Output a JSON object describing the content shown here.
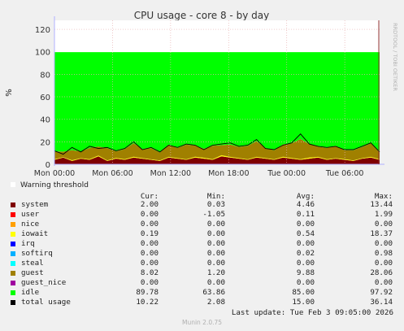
{
  "chart_data": {
    "type": "area",
    "title": "CPU usage - core 8 - by day",
    "ylabel": "%",
    "watermark": "RRDTOOL / TOBI OETIKER",
    "ylim": [
      0,
      128
    ],
    "yticks": [
      0,
      20,
      40,
      60,
      80,
      100,
      120
    ],
    "x_tick_labels": [
      "Mon 00:00",
      "Mon 06:00",
      "Mon 12:00",
      "Mon 18:00",
      "Tue 00:00",
      "Tue 06:00"
    ],
    "grid": true,
    "stack_order": [
      "system",
      "user",
      "nice",
      "iowait",
      "irq",
      "softirq",
      "steal",
      "guest",
      "guest_nice",
      "idle"
    ],
    "series_note": "idle stacked on top reaching 100%",
    "warning_threshold_label": "Warning threshold",
    "series": [
      {
        "name": "system",
        "color": "#7f0000",
        "values": [
          4,
          6,
          3,
          5,
          4,
          7,
          3,
          5,
          4,
          6,
          5,
          4,
          3,
          6,
          5,
          4,
          6,
          5,
          4,
          7,
          6,
          5,
          4,
          6,
          5,
          4,
          6,
          5,
          4,
          5,
          6,
          4,
          5,
          4,
          3,
          5,
          6,
          4
        ]
      },
      {
        "name": "user",
        "color": "#ff0000",
        "values": [
          0,
          0,
          0,
          0,
          0,
          0,
          0,
          0,
          0,
          0,
          0,
          0,
          0,
          0,
          0,
          0,
          0,
          0,
          0,
          0,
          0,
          0,
          0,
          0,
          0,
          0,
          0,
          0,
          0,
          0,
          0,
          0,
          0,
          0,
          0,
          0,
          0,
          0
        ]
      },
      {
        "name": "nice",
        "color": "#ff9f00",
        "values": [
          0,
          0,
          0,
          0,
          0,
          0,
          0,
          0,
          0,
          0,
          0,
          0,
          0,
          0,
          0,
          0,
          0,
          0,
          0,
          0,
          0,
          0,
          0,
          0,
          0,
          0,
          0,
          0,
          0,
          0,
          0,
          0,
          0,
          0,
          0,
          0,
          0,
          0
        ]
      },
      {
        "name": "iowait",
        "color": "#ffff00",
        "values": [
          0.5,
          0.3,
          0.6,
          0.4,
          0.5,
          0.8,
          0.4,
          0.6,
          0.5,
          0.7,
          0.5,
          0.4,
          0.5,
          0.6,
          0.5,
          0.4,
          0.7,
          0.8,
          0.5,
          1,
          0.6,
          0.5,
          0.4,
          0.6,
          0.5,
          0.4,
          0.7,
          0.6,
          0.5,
          0.9,
          0.6,
          0.5,
          0.4,
          0.6,
          0.5,
          0.4,
          0.6,
          0.5
        ]
      },
      {
        "name": "irq",
        "color": "#0000ff",
        "values": [
          0,
          0,
          0,
          0,
          0,
          0,
          0,
          0,
          0,
          0,
          0,
          0,
          0,
          0,
          0,
          0,
          0,
          0,
          0,
          0,
          0,
          0,
          0,
          0,
          0,
          0,
          0,
          0,
          0,
          0,
          0,
          0,
          0,
          0,
          0,
          0,
          0,
          0
        ]
      },
      {
        "name": "softirq",
        "color": "#00b0ff",
        "values": [
          0,
          0,
          0,
          0,
          0,
          0,
          0,
          0,
          0,
          0,
          0,
          0,
          0,
          0,
          0,
          0,
          0,
          0,
          0,
          0,
          0,
          0,
          0,
          0,
          0,
          0,
          0,
          0,
          0,
          0,
          0,
          0,
          0,
          0,
          0,
          0,
          0,
          0
        ]
      },
      {
        "name": "steal",
        "color": "#00ffff",
        "values": [
          0,
          0,
          0,
          0,
          0,
          0,
          0,
          0,
          0,
          0,
          0,
          0,
          0,
          0,
          0,
          0,
          0,
          0,
          0,
          0,
          0,
          0,
          0,
          0,
          0,
          0,
          0,
          0,
          0,
          0,
          0,
          0,
          0,
          0,
          0,
          0,
          0,
          0
        ]
      },
      {
        "name": "guest",
        "color": "#a08000",
        "values": [
          7,
          5,
          9,
          6,
          10,
          8,
          11,
          6,
          9,
          12,
          8,
          10,
          7,
          11,
          9,
          13,
          10,
          8,
          12,
          9,
          11,
          10,
          12,
          14,
          9,
          8,
          11,
          13,
          18,
          12,
          9,
          10,
          11,
          8,
          9,
          10,
          12,
          6
        ]
      },
      {
        "name": "guest_nice",
        "color": "#a000a0",
        "values": [
          0,
          0,
          0,
          0,
          0,
          0,
          0,
          0,
          0,
          0,
          0,
          0,
          0,
          0,
          0,
          0,
          0,
          0,
          0,
          0,
          0,
          0,
          0,
          0,
          0,
          0,
          0,
          0,
          0,
          0,
          0,
          0,
          0,
          0,
          0,
          0,
          0,
          0
        ]
      },
      {
        "name": "idle",
        "color": "#00ff00",
        "values": []
      }
    ],
    "total_usage_line": {
      "name": "total usage",
      "color": "#000000",
      "values": [
        12,
        9,
        15,
        11,
        16,
        14,
        15,
        12,
        14,
        20,
        13,
        15,
        11,
        17,
        15,
        18,
        17,
        13,
        17,
        18,
        19,
        16,
        17,
        22,
        14,
        13,
        17,
        19,
        27,
        18,
        16,
        15,
        16,
        13,
        13,
        16,
        19,
        11
      ]
    }
  },
  "legend": {
    "headers": {
      "cur": "Cur:",
      "min": "Min:",
      "avg": "Avg:",
      "max": "Max:"
    },
    "rows": [
      {
        "name": "system",
        "color": "#7f0000",
        "cur": "2.00",
        "min": "0.03",
        "avg": "4.46",
        "max": "13.44"
      },
      {
        "name": "user",
        "color": "#ff0000",
        "cur": "0.00",
        "min": "-1.05",
        "avg": "0.11",
        "max": "1.99"
      },
      {
        "name": "nice",
        "color": "#ff9f00",
        "cur": "0.00",
        "min": "0.00",
        "avg": "0.00",
        "max": "0.00"
      },
      {
        "name": "iowait",
        "color": "#ffff00",
        "cur": "0.19",
        "min": "0.00",
        "avg": "0.54",
        "max": "18.37"
      },
      {
        "name": "irq",
        "color": "#0000ff",
        "cur": "0.00",
        "min": "0.00",
        "avg": "0.00",
        "max": "0.00"
      },
      {
        "name": "softirq",
        "color": "#00b0ff",
        "cur": "0.00",
        "min": "0.00",
        "avg": "0.02",
        "max": "0.98"
      },
      {
        "name": "steal",
        "color": "#00ffff",
        "cur": "0.00",
        "min": "0.00",
        "avg": "0.00",
        "max": "0.00"
      },
      {
        "name": "guest",
        "color": "#a08000",
        "cur": "8.02",
        "min": "1.20",
        "avg": "9.88",
        "max": "28.06"
      },
      {
        "name": "guest_nice",
        "color": "#a000a0",
        "cur": "0.00",
        "min": "0.00",
        "avg": "0.00",
        "max": "0.00"
      },
      {
        "name": "idle",
        "color": "#00ff00",
        "cur": "89.78",
        "min": "63.86",
        "avg": "85.00",
        "max": "97.92"
      },
      {
        "name": "total usage",
        "color": "#000000",
        "cur": "10.22",
        "min": "2.08",
        "avg": "15.00",
        "max": "36.14"
      }
    ]
  },
  "last_update": "Last update: Tue Feb  3 09:05:00 2026",
  "footer": "Munin 2.0.75"
}
